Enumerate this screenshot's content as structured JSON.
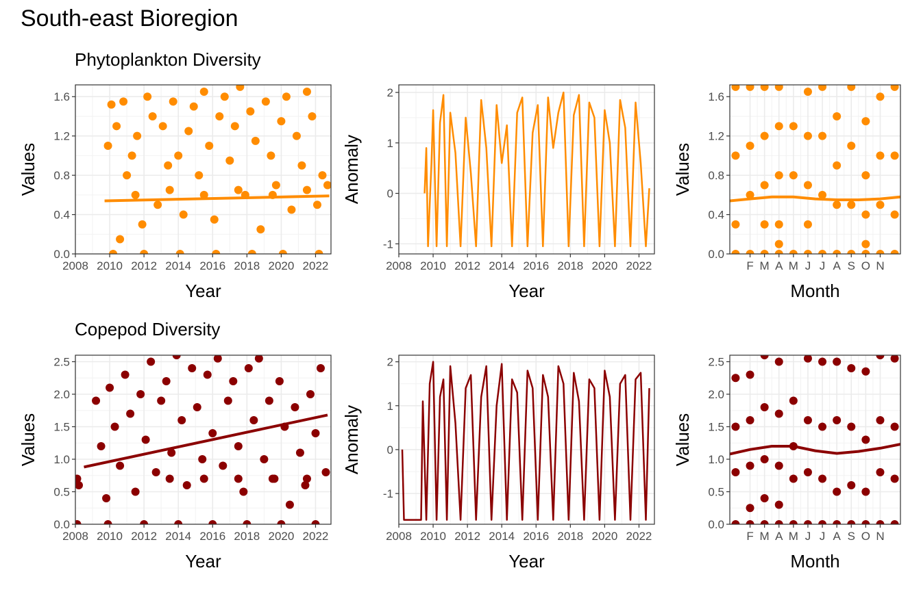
{
  "title": "South-east Bioregion",
  "rows": [
    {
      "subtitle": "Phytoplankton Diversity",
      "color": "#FF8C00"
    },
    {
      "subtitle": "Copepod Diversity",
      "color": "#8B0000"
    }
  ],
  "axis_text": {
    "year_label": "Year",
    "month_label": "Month",
    "values_label": "Values",
    "anomaly_label": "Anomaly"
  },
  "chart_data": [
    {
      "id": "phyto-values-year",
      "type": "scatter",
      "title": "Phytoplankton Diversity",
      "xlabel": "Year",
      "ylabel": "Values",
      "xlim": [
        2008,
        2022.9
      ],
      "ylim": [
        0,
        1.72
      ],
      "xticks": [
        2008,
        2010,
        2012,
        2014,
        2016,
        2018,
        2020,
        2022
      ],
      "yticks": [
        0.0,
        0.4,
        0.8,
        1.2,
        1.6
      ],
      "ytick_labels": [
        "0.0",
        "0.4",
        "0.8",
        "1.2",
        "1.6"
      ],
      "points": [
        [
          2009.9,
          1.1
        ],
        [
          2010.1,
          1.52
        ],
        [
          2010.4,
          1.3
        ],
        [
          2010.6,
          0.15
        ],
        [
          2010.8,
          1.55
        ],
        [
          2011.0,
          0.8
        ],
        [
          2011.3,
          1.0
        ],
        [
          2011.6,
          1.2
        ],
        [
          2011.9,
          0.3
        ],
        [
          2012.2,
          1.6
        ],
        [
          2012.5,
          1.4
        ],
        [
          2012.8,
          0.5
        ],
        [
          2013.1,
          1.3
        ],
        [
          2013.4,
          0.9
        ],
        [
          2013.7,
          1.55
        ],
        [
          2014.0,
          1.0
        ],
        [
          2014.3,
          0.4
        ],
        [
          2014.6,
          1.25
        ],
        [
          2014.9,
          1.5
        ],
        [
          2015.2,
          0.8
        ],
        [
          2015.5,
          1.65
        ],
        [
          2015.8,
          1.1
        ],
        [
          2016.1,
          0.35
        ],
        [
          2016.4,
          1.4
        ],
        [
          2016.7,
          1.6
        ],
        [
          2017.0,
          0.95
        ],
        [
          2017.3,
          1.3
        ],
        [
          2017.6,
          1.7
        ],
        [
          2017.9,
          0.6
        ],
        [
          2018.2,
          1.45
        ],
        [
          2018.5,
          1.15
        ],
        [
          2018.8,
          0.25
        ],
        [
          2019.1,
          1.55
        ],
        [
          2019.4,
          1.0
        ],
        [
          2019.7,
          0.7
        ],
        [
          2020.0,
          1.35
        ],
        [
          2020.3,
          1.6
        ],
        [
          2020.6,
          0.45
        ],
        [
          2020.9,
          1.2
        ],
        [
          2021.2,
          0.9
        ],
        [
          2021.5,
          1.65
        ],
        [
          2021.8,
          1.4
        ],
        [
          2022.1,
          0.5
        ],
        [
          2022.4,
          0.8
        ],
        [
          2022.7,
          0.7
        ],
        [
          2010.2,
          0.0
        ],
        [
          2012.0,
          0.0
        ],
        [
          2014.1,
          0.0
        ],
        [
          2016.2,
          0.0
        ],
        [
          2018.3,
          0.0
        ],
        [
          2020.1,
          0.0
        ],
        [
          2022.2,
          0.0
        ],
        [
          2011.5,
          0.6
        ],
        [
          2013.5,
          0.65
        ],
        [
          2015.5,
          0.6
        ],
        [
          2017.5,
          0.65
        ],
        [
          2019.5,
          0.6
        ],
        [
          2021.5,
          0.65
        ]
      ],
      "trend": {
        "x": [
          2009.7,
          2022.8
        ],
        "y": [
          0.54,
          0.59
        ]
      }
    },
    {
      "id": "phyto-anomaly-year",
      "type": "line",
      "title": "",
      "xlabel": "Year",
      "ylabel": "Anomaly",
      "xlim": [
        2008,
        2022.9
      ],
      "ylim": [
        -1.2,
        2.15
      ],
      "xticks": [
        2008,
        2010,
        2012,
        2014,
        2016,
        2018,
        2020,
        2022
      ],
      "yticks": [
        -1,
        0,
        1,
        2
      ],
      "ytick_labels": [
        "-1",
        "0",
        "1",
        "2"
      ],
      "x": [
        2009.5,
        2009.6,
        2009.7,
        2009.9,
        2010.0,
        2010.2,
        2010.4,
        2010.6,
        2010.8,
        2011.0,
        2011.3,
        2011.6,
        2011.9,
        2012.2,
        2012.5,
        2012.8,
        2013.1,
        2013.4,
        2013.7,
        2014.0,
        2014.3,
        2014.6,
        2014.9,
        2015.2,
        2015.5,
        2015.8,
        2016.1,
        2016.4,
        2016.7,
        2017.0,
        2017.3,
        2017.6,
        2017.9,
        2018.2,
        2018.5,
        2018.8,
        2019.1,
        2019.4,
        2019.7,
        2020.0,
        2020.3,
        2020.6,
        2020.9,
        2021.2,
        2021.5,
        2021.8,
        2022.1,
        2022.4,
        2022.6
      ],
      "y": [
        0.0,
        0.9,
        -1.05,
        0.6,
        1.65,
        -1.05,
        1.4,
        1.95,
        -1.05,
        1.6,
        0.8,
        -1.05,
        1.5,
        0.4,
        -1.05,
        1.85,
        0.9,
        -1.05,
        1.75,
        0.6,
        1.35,
        -1.05,
        1.6,
        1.9,
        -1.05,
        1.2,
        1.75,
        -1.05,
        1.9,
        0.9,
        1.6,
        2.0,
        -1.05,
        1.55,
        1.95,
        -1.05,
        1.8,
        1.5,
        -1.05,
        1.65,
        1.0,
        -1.05,
        1.85,
        1.3,
        -1.05,
        1.8,
        0.6,
        -1.05,
        0.1
      ]
    },
    {
      "id": "phyto-values-month",
      "type": "scatter",
      "title": "",
      "xlabel": "Month",
      "ylabel": "Values",
      "xlim": [
        0.6,
        12.4
      ],
      "ylim": [
        0,
        1.72
      ],
      "xticks": [
        2,
        3,
        4,
        5,
        6,
        7,
        8,
        9,
        10,
        11
      ],
      "xtick_labels": [
        "F",
        "M",
        "A",
        "M",
        "J",
        "J",
        "A",
        "S",
        "O",
        "N"
      ],
      "yticks": [
        0.0,
        0.4,
        0.8,
        1.2,
        1.6
      ],
      "ytick_labels": [
        "0.0",
        "0.4",
        "0.8",
        "1.2",
        "1.6"
      ],
      "points": [
        [
          1,
          1.7
        ],
        [
          1,
          1.0
        ],
        [
          1,
          0.3
        ],
        [
          1,
          0.0
        ],
        [
          2,
          1.7
        ],
        [
          2,
          1.1
        ],
        [
          2,
          0.6
        ],
        [
          2,
          0.0
        ],
        [
          3,
          1.7
        ],
        [
          3,
          1.2
        ],
        [
          3,
          0.7
        ],
        [
          3,
          0.3
        ],
        [
          3,
          0.0
        ],
        [
          4,
          1.7
        ],
        [
          4,
          1.3
        ],
        [
          4,
          0.8
        ],
        [
          4,
          0.3
        ],
        [
          4,
          0.1
        ],
        [
          4,
          0.0
        ],
        [
          5,
          1.3
        ],
        [
          5,
          0.8
        ],
        [
          5,
          0.0
        ],
        [
          6,
          1.65
        ],
        [
          6,
          1.2
        ],
        [
          6,
          0.7
        ],
        [
          6,
          0.3
        ],
        [
          6,
          0.0
        ],
        [
          7,
          1.7
        ],
        [
          7,
          1.2
        ],
        [
          7,
          0.6
        ],
        [
          7,
          0.0
        ],
        [
          8,
          1.4
        ],
        [
          8,
          0.9
        ],
        [
          8,
          0.5
        ],
        [
          8,
          0.0
        ],
        [
          9,
          1.7
        ],
        [
          9,
          1.1
        ],
        [
          9,
          0.5
        ],
        [
          9,
          0.0
        ],
        [
          10,
          1.35
        ],
        [
          10,
          0.8
        ],
        [
          10,
          0.4
        ],
        [
          10,
          0.1
        ],
        [
          10,
          0.0
        ],
        [
          11,
          1.6
        ],
        [
          11,
          1.0
        ],
        [
          11,
          0.5
        ],
        [
          11,
          0.0
        ],
        [
          12,
          1.7
        ],
        [
          12,
          1.0
        ],
        [
          12,
          0.4
        ],
        [
          12,
          0.0
        ]
      ],
      "trend": {
        "x": [
          0.6,
          2,
          3.5,
          5,
          6.5,
          8,
          9.5,
          11,
          12.4
        ],
        "y": [
          0.54,
          0.56,
          0.58,
          0.58,
          0.56,
          0.55,
          0.55,
          0.56,
          0.58
        ]
      }
    },
    {
      "id": "cope-values-year",
      "type": "scatter",
      "title": "Copepod Diversity",
      "xlabel": "Year",
      "ylabel": "Values",
      "xlim": [
        2008,
        2022.9
      ],
      "ylim": [
        0,
        2.6
      ],
      "xticks": [
        2008,
        2010,
        2012,
        2014,
        2016,
        2018,
        2020,
        2022
      ],
      "yticks": [
        0.0,
        0.5,
        1.0,
        1.5,
        2.0,
        2.5
      ],
      "ytick_labels": [
        "0.0",
        "0.5",
        "1.0",
        "1.5",
        "2.0",
        "2.5"
      ],
      "points": [
        [
          2008.1,
          0.7
        ],
        [
          2008.2,
          0.6
        ],
        [
          2008.1,
          0.0
        ],
        [
          2009.2,
          1.9
        ],
        [
          2009.5,
          1.2
        ],
        [
          2009.8,
          0.4
        ],
        [
          2010.0,
          2.1
        ],
        [
          2010.3,
          1.5
        ],
        [
          2010.6,
          0.9
        ],
        [
          2010.9,
          2.3
        ],
        [
          2011.2,
          1.7
        ],
        [
          2011.5,
          0.5
        ],
        [
          2011.8,
          2.0
        ],
        [
          2012.1,
          1.3
        ],
        [
          2012.4,
          2.5
        ],
        [
          2012.7,
          0.8
        ],
        [
          2013.0,
          1.9
        ],
        [
          2013.3,
          2.2
        ],
        [
          2013.6,
          1.1
        ],
        [
          2013.9,
          2.6
        ],
        [
          2014.2,
          1.6
        ],
        [
          2014.5,
          0.6
        ],
        [
          2014.8,
          2.4
        ],
        [
          2015.1,
          1.8
        ],
        [
          2015.4,
          1.0
        ],
        [
          2015.7,
          2.3
        ],
        [
          2016.0,
          1.4
        ],
        [
          2016.3,
          2.55
        ],
        [
          2016.6,
          0.9
        ],
        [
          2016.9,
          1.9
        ],
        [
          2017.2,
          2.2
        ],
        [
          2017.5,
          1.2
        ],
        [
          2017.8,
          0.5
        ],
        [
          2018.1,
          2.4
        ],
        [
          2018.4,
          1.6
        ],
        [
          2018.7,
          2.55
        ],
        [
          2019.0,
          1.0
        ],
        [
          2019.3,
          1.9
        ],
        [
          2019.6,
          0.7
        ],
        [
          2019.9,
          2.2
        ],
        [
          2020.2,
          1.5
        ],
        [
          2020.5,
          0.3
        ],
        [
          2020.8,
          1.8
        ],
        [
          2021.1,
          1.1
        ],
        [
          2021.4,
          0.6
        ],
        [
          2021.7,
          2.0
        ],
        [
          2022.0,
          1.4
        ],
        [
          2022.3,
          2.4
        ],
        [
          2022.6,
          0.8
        ],
        [
          2009.9,
          0.0
        ],
        [
          2012.0,
          0.0
        ],
        [
          2014.0,
          0.0
        ],
        [
          2016.0,
          0.0
        ],
        [
          2018.0,
          0.0
        ],
        [
          2020.0,
          0.0
        ],
        [
          2022.0,
          0.0
        ],
        [
          2013.5,
          0.7
        ],
        [
          2015.5,
          0.7
        ],
        [
          2017.5,
          0.7
        ],
        [
          2019.5,
          0.7
        ],
        [
          2021.5,
          0.7
        ]
      ],
      "trend": {
        "x": [
          2008.5,
          2022.7
        ],
        "y": [
          0.88,
          1.68
        ]
      }
    },
    {
      "id": "cope-anomaly-year",
      "type": "line",
      "title": "",
      "xlabel": "Year",
      "ylabel": "Anomaly",
      "xlim": [
        2008,
        2022.9
      ],
      "ylim": [
        -1.7,
        2.15
      ],
      "xticks": [
        2008,
        2010,
        2012,
        2014,
        2016,
        2018,
        2020,
        2022
      ],
      "yticks": [
        -1,
        0,
        1,
        2
      ],
      "ytick_labels": [
        "-1",
        "0",
        "1",
        "2"
      ],
      "x": [
        2008.2,
        2008.3,
        2009.3,
        2009.4,
        2009.6,
        2009.8,
        2010.0,
        2010.2,
        2010.4,
        2010.6,
        2010.8,
        2011.0,
        2011.3,
        2011.6,
        2011.9,
        2012.2,
        2012.5,
        2012.8,
        2013.1,
        2013.4,
        2013.7,
        2014.0,
        2014.3,
        2014.6,
        2014.9,
        2015.2,
        2015.5,
        2015.8,
        2016.1,
        2016.4,
        2016.7,
        2017.0,
        2017.3,
        2017.6,
        2017.9,
        2018.2,
        2018.5,
        2018.8,
        2019.1,
        2019.4,
        2019.7,
        2020.0,
        2020.3,
        2020.6,
        2020.9,
        2021.2,
        2021.5,
        2021.8,
        2022.1,
        2022.4,
        2022.6
      ],
      "y": [
        0.0,
        -1.6,
        -1.6,
        1.1,
        -1.6,
        1.5,
        2.0,
        -1.6,
        1.2,
        1.6,
        -1.6,
        1.9,
        0.6,
        -1.6,
        1.4,
        1.7,
        -1.6,
        1.2,
        1.9,
        -1.6,
        1.0,
        1.95,
        -1.6,
        1.6,
        1.3,
        -1.6,
        1.8,
        1.4,
        -1.6,
        1.7,
        1.2,
        -1.6,
        1.9,
        1.5,
        -1.6,
        1.75,
        1.1,
        -1.6,
        1.6,
        1.4,
        -1.6,
        1.8,
        1.2,
        -1.6,
        1.5,
        1.7,
        -1.6,
        1.6,
        1.75,
        -1.6,
        1.4
      ]
    },
    {
      "id": "cope-values-month",
      "type": "scatter",
      "title": "",
      "xlabel": "Month",
      "ylabel": "Values",
      "xlim": [
        0.6,
        12.4
      ],
      "ylim": [
        0,
        2.6
      ],
      "xticks": [
        2,
        3,
        4,
        5,
        6,
        7,
        8,
        9,
        10,
        11
      ],
      "xtick_labels": [
        "F",
        "M",
        "A",
        "M",
        "J",
        "J",
        "A",
        "S",
        "O",
        "N"
      ],
      "yticks": [
        0.0,
        0.5,
        1.0,
        1.5,
        2.0,
        2.5
      ],
      "ytick_labels": [
        "0.0",
        "0.5",
        "1.0",
        "1.5",
        "2.0",
        "2.5"
      ],
      "points": [
        [
          1,
          2.25
        ],
        [
          1,
          1.5
        ],
        [
          1,
          0.8
        ],
        [
          1,
          0.0
        ],
        [
          2,
          2.3
        ],
        [
          2,
          1.6
        ],
        [
          2,
          0.9
        ],
        [
          2,
          0.25
        ],
        [
          2,
          0.0
        ],
        [
          3,
          2.6
        ],
        [
          3,
          1.8
        ],
        [
          3,
          1.0
        ],
        [
          3,
          0.4
        ],
        [
          3,
          0.0
        ],
        [
          4,
          2.5
        ],
        [
          4,
          1.7
        ],
        [
          4,
          0.9
        ],
        [
          4,
          0.3
        ],
        [
          4,
          0.0
        ],
        [
          5,
          1.9
        ],
        [
          5,
          1.2
        ],
        [
          5,
          0.7
        ],
        [
          5,
          0.0
        ],
        [
          6,
          2.55
        ],
        [
          6,
          1.6
        ],
        [
          6,
          0.8
        ],
        [
          6,
          0.0
        ],
        [
          7,
          2.5
        ],
        [
          7,
          1.5
        ],
        [
          7,
          0.7
        ],
        [
          7,
          0.0
        ],
        [
          8,
          2.5
        ],
        [
          8,
          1.6
        ],
        [
          8,
          0.5
        ],
        [
          8,
          0.0
        ],
        [
          9,
          2.4
        ],
        [
          9,
          1.5
        ],
        [
          9,
          0.6
        ],
        [
          9,
          0.0
        ],
        [
          10,
          2.35
        ],
        [
          10,
          1.3
        ],
        [
          10,
          0.5
        ],
        [
          10,
          0.0
        ],
        [
          11,
          2.6
        ],
        [
          11,
          1.6
        ],
        [
          11,
          0.8
        ],
        [
          11,
          0.0
        ],
        [
          12,
          2.55
        ],
        [
          12,
          1.5
        ],
        [
          12,
          0.7
        ],
        [
          12,
          0.0
        ]
      ],
      "trend": {
        "x": [
          0.6,
          2,
          3.5,
          5,
          6.5,
          8,
          9.5,
          11,
          12.4
        ],
        "y": [
          1.08,
          1.15,
          1.2,
          1.2,
          1.13,
          1.09,
          1.12,
          1.17,
          1.23
        ]
      }
    }
  ]
}
